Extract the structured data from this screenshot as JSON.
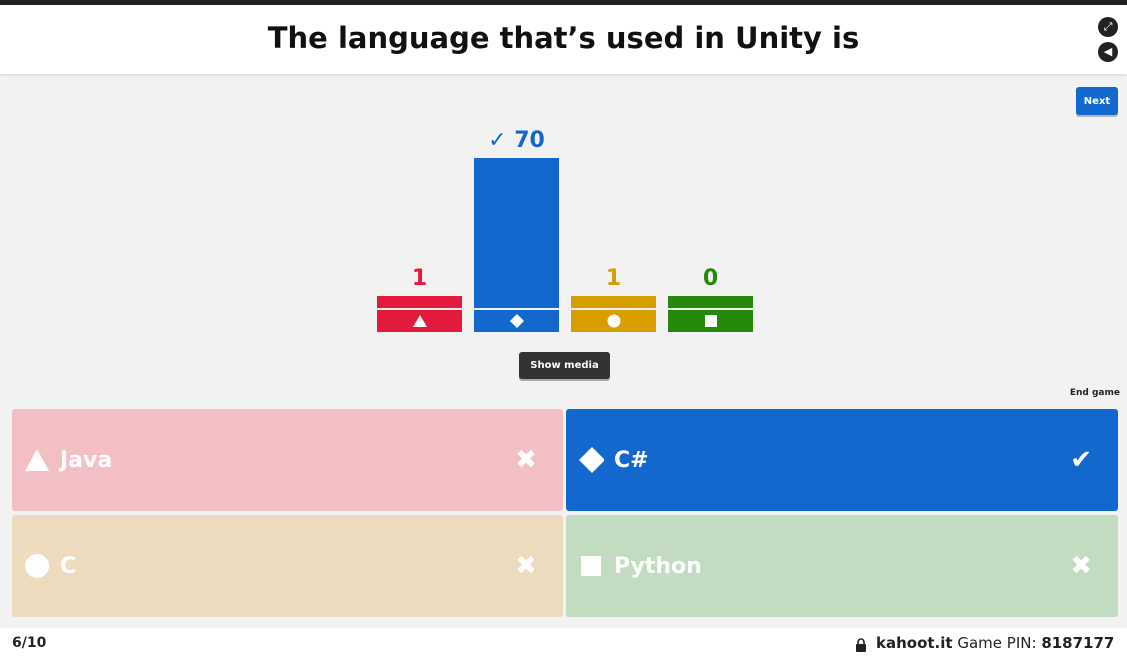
{
  "question": "The language that’s used in Unity is",
  "header_icons": [
    "fullscreen-icon",
    "volume-icon"
  ],
  "next_label": "Next",
  "end_game_label": "End game",
  "show_media_label": "Show media",
  "chart_data": {
    "type": "bar",
    "categories": [
      "triangle",
      "diamond",
      "circle",
      "square"
    ],
    "values": [
      1,
      70,
      1,
      0
    ],
    "correct": [
      false,
      true,
      false,
      false
    ],
    "colors": [
      "#e21b3c",
      "#1368ce",
      "#d89e00",
      "#26890c"
    ],
    "value_labels": [
      "1",
      "✓ 70",
      "1",
      "0"
    ]
  },
  "answers": [
    {
      "label": "Java",
      "shape": "triangle-icon",
      "correct": false,
      "mark": "✖",
      "color": "#f2bfc5"
    },
    {
      "label": "C#",
      "shape": "diamond-icon",
      "correct": true,
      "mark": "✔",
      "color": "#1368ce"
    },
    {
      "label": "C",
      "shape": "circle-icon",
      "correct": false,
      "mark": "✖",
      "color": "#ecdcbd"
    },
    {
      "label": "Python",
      "shape": "square-icon",
      "correct": false,
      "mark": "✖",
      "color": "#c3dbc1"
    }
  ],
  "footer": {
    "counter": "6/10",
    "site": "kahoot.it",
    "pin_label": "Game PIN:",
    "pin": "8187177"
  }
}
